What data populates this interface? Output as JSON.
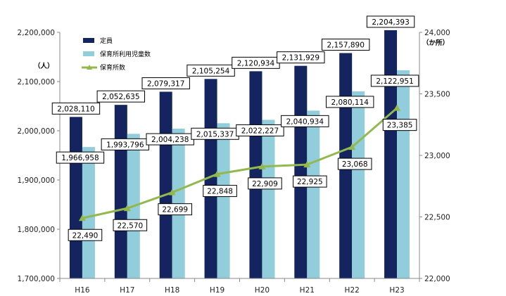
{
  "chart_data": {
    "type": "bar+line",
    "categories": [
      "H16",
      "H17",
      "H18",
      "H19",
      "H20",
      "H21",
      "H22",
      "H23"
    ],
    "series": [
      {
        "name": "定員",
        "type": "bar",
        "axis": "left",
        "color": "#14245e",
        "values": [
          2028110,
          2052635,
          2079317,
          2105254,
          2120934,
          2131929,
          2157890,
          2204393
        ],
        "labels": [
          "2,028,110",
          "2,052,635",
          "2,079,317",
          "2,105,254",
          "2,120,934",
          "2,131,929",
          "2,157,890",
          "2,204,393"
        ]
      },
      {
        "name": "保育所利用児童数",
        "type": "bar",
        "axis": "left",
        "color": "#92cddc",
        "values": [
          1966958,
          1993796,
          2004238,
          2015337,
          2022227,
          2040934,
          2080114,
          2122951
        ],
        "labels": [
          "1,966,958",
          "1,993,796",
          "2,004,238",
          "2,015,337",
          "2,022,227",
          "2,040,934",
          "2,080,114",
          "2,122,951"
        ]
      },
      {
        "name": "保育所数",
        "type": "line",
        "axis": "right",
        "color": "#92b84e",
        "values": [
          22490,
          22570,
          22699,
          22848,
          22909,
          22925,
          23068,
          23385
        ],
        "labels": [
          "22,490",
          "22,570",
          "22,699",
          "22,848",
          "22,909",
          "22,925",
          "23,068",
          "23,385"
        ]
      }
    ],
    "y_left": {
      "min": 1700000,
      "max": 2200000,
      "unit": "（人）",
      "ticks": [
        "1,700,000",
        "1,800,000",
        "1,900,000",
        "2,000,000",
        "2,100,000",
        "2,200,000"
      ]
    },
    "y_right": {
      "min": 22000,
      "max": 24000,
      "unit": "（か所）",
      "ticks": [
        "22,000",
        "22,500",
        "23,000",
        "23,500",
        "24,000"
      ]
    },
    "legend_position": "top-left"
  }
}
